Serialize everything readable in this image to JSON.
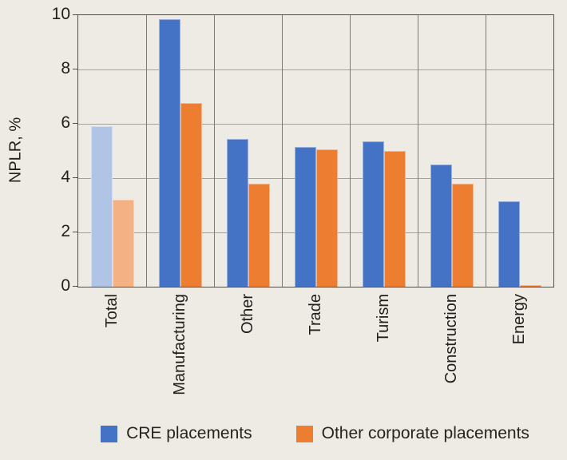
{
  "chart_data": {
    "type": "bar",
    "title": "",
    "xlabel": "",
    "ylabel": "NPLR, %",
    "ylim": [
      0,
      10
    ],
    "yticks": [
      0,
      2,
      4,
      6,
      8,
      10
    ],
    "grid": true,
    "legend_position": "bottom",
    "categories": [
      "Total",
      "Manufacturing",
      "Other",
      "Trade",
      "Turism",
      "Construction",
      "Energy"
    ],
    "series": [
      {
        "name": "CRE placements",
        "color": "#4472c4",
        "muted_color": "#b0c4e6",
        "values": [
          5.9,
          9.85,
          5.45,
          5.15,
          5.35,
          4.5,
          3.15
        ]
      },
      {
        "name": "Other corporate placements",
        "color": "#ed7d31",
        "muted_color": "#f4b183",
        "values": [
          3.2,
          6.75,
          3.8,
          5.05,
          5.0,
          3.8,
          0.05
        ]
      }
    ],
    "muted_category": "Total"
  },
  "colors": {
    "background": "#eeebe4",
    "plot_border": "#4f4e47",
    "gridline": "#a5a29a",
    "separator": "#7d7a70",
    "text": "#21201d"
  }
}
